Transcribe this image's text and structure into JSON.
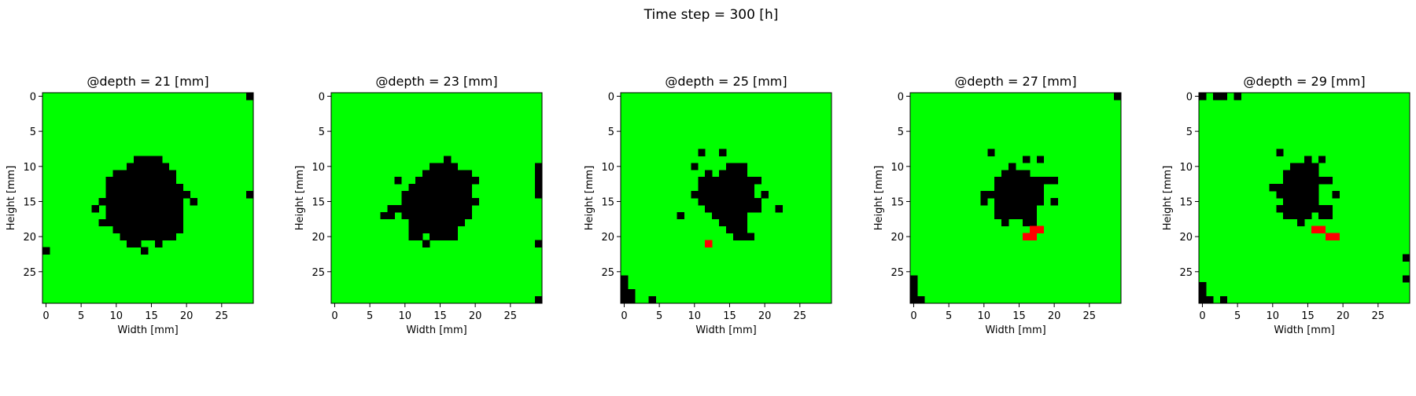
{
  "suptitle": "Time step = 300 [h]",
  "colors": {
    "healthy": "#00ff00",
    "empty": "#000000",
    "marked": "#ff0000"
  },
  "chart_data": [
    {
      "type": "heatmap",
      "title": "@depth = 21 [mm]",
      "xlabel": "Width [mm]",
      "ylabel": "Height [mm]",
      "xticks": [
        0,
        5,
        10,
        15,
        20,
        25
      ],
      "yticks": [
        0,
        5,
        10,
        15,
        20,
        25
      ],
      "grid_size": 30,
      "background": "healthy",
      "runs": {
        "empty": [
          [
            0,
            29,
            29
          ],
          [
            9,
            13,
            16
          ],
          [
            10,
            12,
            17
          ],
          [
            11,
            11,
            18
          ],
          [
            11,
            10,
            10
          ],
          [
            12,
            9,
            18
          ],
          [
            13,
            9,
            19
          ],
          [
            14,
            9,
            20
          ],
          [
            14,
            29,
            29
          ],
          [
            15,
            8,
            19
          ],
          [
            15,
            21,
            21
          ],
          [
            16,
            7,
            7
          ],
          [
            16,
            9,
            19
          ],
          [
            17,
            9,
            19
          ],
          [
            18,
            8,
            19
          ],
          [
            19,
            10,
            19
          ],
          [
            20,
            11,
            18
          ],
          [
            21,
            12,
            13
          ],
          [
            21,
            16,
            16
          ],
          [
            22,
            0,
            0
          ],
          [
            22,
            14,
            14
          ]
        ],
        "marked": []
      }
    },
    {
      "type": "heatmap",
      "title": "@depth = 23 [mm]",
      "xlabel": "Width [mm]",
      "ylabel": "Height [mm]",
      "xticks": [
        0,
        5,
        10,
        15,
        20,
        25
      ],
      "yticks": [
        0,
        5,
        10,
        15,
        20,
        25
      ],
      "grid_size": 30,
      "background": "healthy",
      "runs": {
        "empty": [
          [
            9,
            16,
            16
          ],
          [
            10,
            14,
            17
          ],
          [
            10,
            29,
            29
          ],
          [
            11,
            13,
            18
          ],
          [
            11,
            19,
            19
          ],
          [
            11,
            29,
            29
          ],
          [
            12,
            9,
            9
          ],
          [
            12,
            12,
            20
          ],
          [
            12,
            29,
            29
          ],
          [
            13,
            11,
            19
          ],
          [
            13,
            29,
            29
          ],
          [
            14,
            10,
            19
          ],
          [
            14,
            29,
            29
          ],
          [
            15,
            10,
            20
          ],
          [
            16,
            8,
            19
          ],
          [
            17,
            7,
            8
          ],
          [
            17,
            10,
            19
          ],
          [
            18,
            11,
            18
          ],
          [
            19,
            11,
            17
          ],
          [
            20,
            11,
            12
          ],
          [
            20,
            14,
            17
          ],
          [
            21,
            13,
            13
          ],
          [
            21,
            29,
            29
          ],
          [
            29,
            29,
            29
          ]
        ],
        "marked": []
      }
    },
    {
      "type": "heatmap",
      "title": "@depth = 25 [mm]",
      "xlabel": "Width [mm]",
      "ylabel": "Height [mm]",
      "xticks": [
        0,
        5,
        10,
        15,
        20,
        25
      ],
      "yticks": [
        0,
        5,
        10,
        15,
        20,
        25
      ],
      "grid_size": 30,
      "background": "healthy",
      "runs": {
        "empty": [
          [
            8,
            11,
            11
          ],
          [
            8,
            14,
            14
          ],
          [
            10,
            10,
            10
          ],
          [
            10,
            15,
            17
          ],
          [
            11,
            12,
            12
          ],
          [
            11,
            14,
            17
          ],
          [
            12,
            11,
            19
          ],
          [
            13,
            11,
            18
          ],
          [
            14,
            10,
            18
          ],
          [
            14,
            20,
            20
          ],
          [
            15,
            11,
            19
          ],
          [
            16,
            12,
            19
          ],
          [
            16,
            22,
            22
          ],
          [
            17,
            8,
            8
          ],
          [
            17,
            13,
            17
          ],
          [
            18,
            14,
            17
          ],
          [
            19,
            15,
            17
          ],
          [
            20,
            16,
            18
          ],
          [
            26,
            0,
            0
          ],
          [
            27,
            0,
            0
          ],
          [
            28,
            0,
            1
          ],
          [
            29,
            0,
            1
          ],
          [
            29,
            4,
            4
          ]
        ],
        "marked": [
          [
            21,
            12,
            12
          ]
        ]
      }
    },
    {
      "type": "heatmap",
      "title": "@depth = 27 [mm]",
      "xlabel": "Width [mm]",
      "ylabel": "Height [mm]",
      "xticks": [
        0,
        5,
        10,
        15,
        20,
        25
      ],
      "yticks": [
        0,
        5,
        10,
        15,
        20,
        25
      ],
      "grid_size": 30,
      "background": "healthy",
      "runs": {
        "empty": [
          [
            0,
            29,
            29
          ],
          [
            8,
            11,
            11
          ],
          [
            9,
            16,
            16
          ],
          [
            9,
            18,
            18
          ],
          [
            10,
            14,
            14
          ],
          [
            11,
            13,
            16
          ],
          [
            12,
            12,
            20
          ],
          [
            13,
            12,
            18
          ],
          [
            14,
            10,
            18
          ],
          [
            15,
            10,
            10
          ],
          [
            15,
            12,
            18
          ],
          [
            15,
            20,
            20
          ],
          [
            16,
            12,
            17
          ],
          [
            17,
            12,
            17
          ],
          [
            18,
            13,
            13
          ],
          [
            18,
            16,
            17
          ],
          [
            26,
            0,
            0
          ],
          [
            27,
            0,
            0
          ],
          [
            28,
            0,
            0
          ],
          [
            29,
            0,
            1
          ]
        ],
        "marked": [
          [
            19,
            17,
            18
          ],
          [
            20,
            16,
            17
          ]
        ]
      }
    },
    {
      "type": "heatmap",
      "title": "@depth = 29 [mm]",
      "xlabel": "Width [mm]",
      "ylabel": "Height [mm]",
      "xticks": [
        0,
        5,
        10,
        15,
        20,
        25
      ],
      "yticks": [
        0,
        5,
        10,
        15,
        20,
        25
      ],
      "grid_size": 30,
      "background": "healthy",
      "runs": {
        "empty": [
          [
            0,
            0,
            0
          ],
          [
            0,
            2,
            3
          ],
          [
            0,
            5,
            5
          ],
          [
            8,
            11,
            11
          ],
          [
            9,
            15,
            15
          ],
          [
            9,
            17,
            17
          ],
          [
            10,
            13,
            16
          ],
          [
            11,
            12,
            16
          ],
          [
            12,
            12,
            18
          ],
          [
            13,
            10,
            16
          ],
          [
            14,
            11,
            16
          ],
          [
            14,
            19,
            19
          ],
          [
            15,
            12,
            16
          ],
          [
            16,
            11,
            18
          ],
          [
            17,
            12,
            15
          ],
          [
            17,
            17,
            18
          ],
          [
            18,
            14,
            14
          ],
          [
            23,
            29,
            29
          ],
          [
            26,
            29,
            29
          ],
          [
            27,
            0,
            0
          ],
          [
            28,
            0,
            0
          ],
          [
            29,
            0,
            1
          ],
          [
            29,
            3,
            3
          ]
        ],
        "marked": [
          [
            19,
            16,
            17
          ],
          [
            20,
            18,
            19
          ]
        ]
      }
    }
  ]
}
